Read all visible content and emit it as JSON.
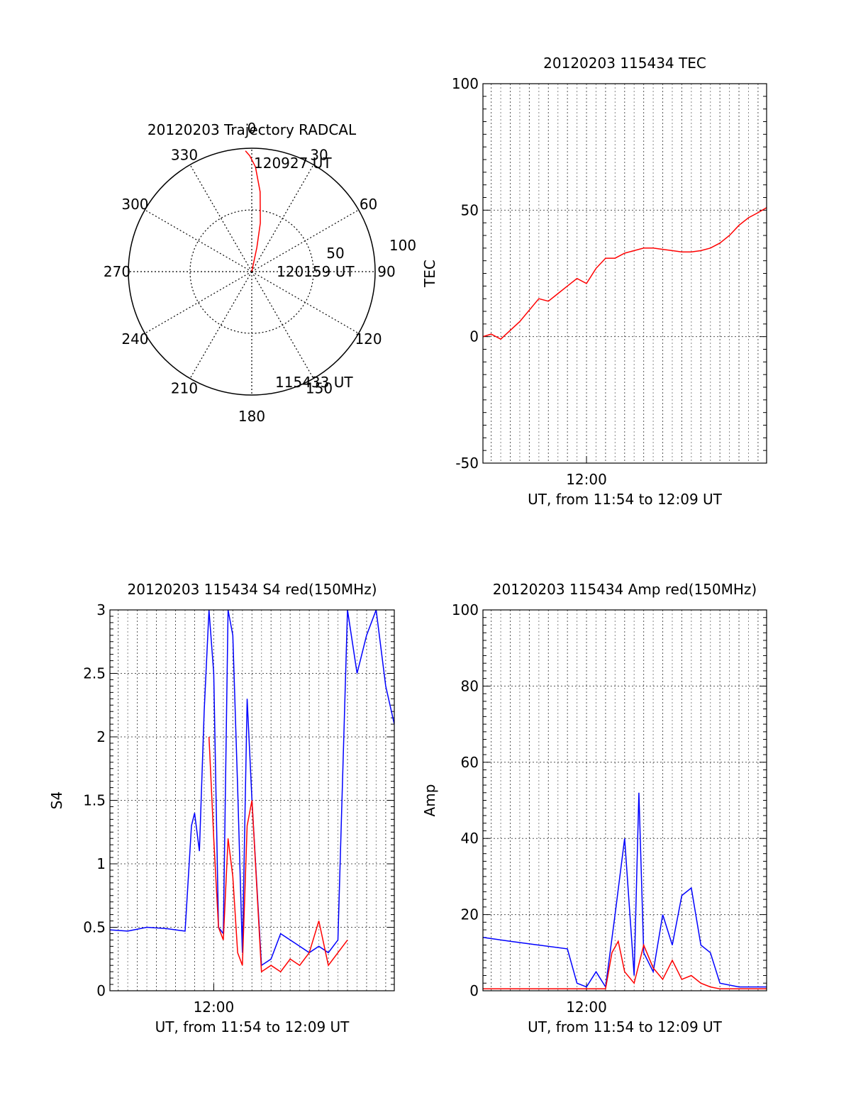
{
  "chart_data": [
    {
      "type": "polar",
      "title": "20120203 Trajectory RADCAL",
      "angle_labels": [
        "0",
        "30",
        "60",
        "90",
        "120",
        "150",
        "180",
        "210",
        "240",
        "270",
        "300",
        "330"
      ],
      "radial_labels": [
        "50",
        "100"
      ],
      "radial_range": [
        0,
        100
      ],
      "annotations": [
        "120927 UT",
        "120159 UT",
        "115433 UT"
      ],
      "series": [
        {
          "color": "#ff0000",
          "points": [
            [
              14,
              0
            ],
            [
              12,
              20
            ],
            [
              10,
              40
            ],
            [
              6,
              65
            ],
            [
              2,
              85
            ],
            [
              -1,
              94
            ],
            [
              -3,
              98
            ]
          ]
        }
      ]
    },
    {
      "type": "line",
      "title": "20120203 115434 TEC",
      "xlabel": "UT, from 11:54 to 12:09 UT",
      "ylabel": "TEC",
      "ylim": [
        -50,
        100
      ],
      "xlim": [
        "11:54:34",
        "12:09:27"
      ],
      "y_ticks": [
        "100",
        "50",
        "0",
        "-50"
      ],
      "x_tick_label": "12:00",
      "grid": true,
      "series": [
        {
          "color": "#ff0000",
          "x": [
            "11:54:34",
            "11:55:00",
            "11:55:30",
            "11:56:30",
            "11:57:30",
            "11:58:00",
            "11:58:30",
            "11:59:00",
            "11:59:30",
            "12:00:00",
            "12:00:30",
            "12:01:00",
            "12:01:30",
            "12:02:00",
            "12:02:30",
            "12:03:00",
            "12:03:30",
            "12:04:00",
            "12:04:30",
            "12:05:00",
            "12:05:30",
            "12:06:00",
            "12:06:30",
            "12:07:00",
            "12:07:30",
            "12:08:00",
            "12:08:30",
            "12:09:00",
            "12:09:27"
          ],
          "y": [
            0,
            1,
            -1,
            6,
            15,
            14,
            17,
            20,
            23,
            21,
            27,
            31,
            31,
            33,
            34,
            35,
            35,
            34.5,
            34,
            33.5,
            33.5,
            34,
            35,
            37,
            40,
            44,
            47,
            49,
            51
          ]
        }
      ]
    },
    {
      "type": "line",
      "title": "20120203 115434 S4 red(150MHz)",
      "xlabel": "UT, from 11:54 to 12:09 UT",
      "ylabel": "S4",
      "ylim": [
        0,
        3
      ],
      "xlim": [
        "11:54:34",
        "12:09:27"
      ],
      "y_ticks": [
        "3",
        "2.5",
        "2",
        "1.5",
        "1",
        "0.5",
        "0"
      ],
      "x_tick_label": "12:00",
      "grid": true,
      "series": [
        {
          "color": "#0000ff",
          "x": [
            "11:54:34",
            "11:55:30",
            "11:56:30",
            "11:57:30",
            "11:58:30",
            "11:58:50",
            "11:59:00",
            "11:59:15",
            "11:59:30",
            "11:59:45",
            "12:00:00",
            "12:00:15",
            "12:00:30",
            "12:00:45",
            "12:01:00",
            "12:01:15",
            "12:01:30",
            "12:01:45",
            "12:02:00",
            "12:02:30",
            "12:03:00",
            "12:03:30",
            "12:04:00",
            "12:04:30",
            "12:05:00",
            "12:05:30",
            "12:06:00",
            "12:06:30",
            "12:07:00",
            "12:07:30",
            "12:08:00",
            "12:08:30",
            "12:09:00",
            "12:09:27"
          ],
          "y": [
            0.48,
            0.47,
            0.5,
            0.49,
            0.47,
            1.3,
            1.4,
            1.1,
            2.2,
            3.0,
            2.5,
            0.5,
            0.45,
            3.0,
            2.8,
            1.6,
            0.3,
            2.3,
            1.5,
            0.2,
            0.25,
            0.45,
            0.4,
            0.35,
            0.3,
            0.35,
            0.3,
            0.4,
            3.0,
            2.5,
            2.8,
            3.0,
            2.4,
            2.1
          ]
        },
        {
          "color": "#ff0000",
          "x": [
            "11:59:45",
            "12:00:00",
            "12:00:15",
            "12:00:30",
            "12:00:45",
            "12:01:00",
            "12:01:15",
            "12:01:30",
            "12:01:45",
            "12:02:00",
            "12:02:30",
            "12:03:00",
            "12:03:30",
            "12:04:00",
            "12:04:30",
            "12:05:00",
            "12:05:30",
            "12:06:00",
            "12:06:30",
            "12:07:00"
          ],
          "y": [
            2.0,
            1.2,
            0.5,
            0.4,
            1.2,
            0.9,
            0.3,
            0.2,
            1.3,
            1.5,
            0.15,
            0.2,
            0.15,
            0.25,
            0.2,
            0.3,
            0.55,
            0.2,
            0.3,
            0.4
          ]
        }
      ]
    },
    {
      "type": "line",
      "title": "20120203 115434 Amp red(150MHz)",
      "xlabel": "UT, from 11:54 to 12:09 UT",
      "ylabel": "Amp",
      "ylim": [
        0,
        100
      ],
      "xlim": [
        "11:54:34",
        "12:09:27"
      ],
      "y_ticks": [
        "100",
        "80",
        "60",
        "40",
        "20",
        "0"
      ],
      "x_tick_label": "12:00",
      "grid": true,
      "series": [
        {
          "color": "#0000ff",
          "x": [
            "11:54:34",
            "11:56:00",
            "11:57:30",
            "11:59:00",
            "11:59:30",
            "12:00:00",
            "12:00:30",
            "12:01:00",
            "12:01:30",
            "12:02:00",
            "12:02:30",
            "12:02:45",
            "12:03:00",
            "12:03:30",
            "12:04:00",
            "12:04:30",
            "12:05:00",
            "12:05:30",
            "12:06:00",
            "12:06:30",
            "12:07:00",
            "12:08:00",
            "12:09:27"
          ],
          "y": [
            14,
            13,
            12,
            11,
            2,
            1,
            5,
            1,
            20,
            40,
            4,
            52,
            10,
            5,
            20,
            12,
            25,
            27,
            12,
            10,
            2,
            1,
            1
          ]
        },
        {
          "color": "#ff0000",
          "x": [
            "11:54:34",
            "11:59:00",
            "12:00:00",
            "12:01:00",
            "12:01:20",
            "12:01:40",
            "12:02:00",
            "12:02:30",
            "12:03:00",
            "12:03:30",
            "12:04:00",
            "12:04:30",
            "12:05:00",
            "12:05:30",
            "12:06:00",
            "12:06:30",
            "12:07:00",
            "12:09:27"
          ],
          "y": [
            0.5,
            0.5,
            0.5,
            0.5,
            10,
            13,
            5,
            2,
            12,
            6,
            3,
            8,
            3,
            4,
            2,
            1,
            0.5,
            0.5
          ]
        }
      ]
    }
  ]
}
